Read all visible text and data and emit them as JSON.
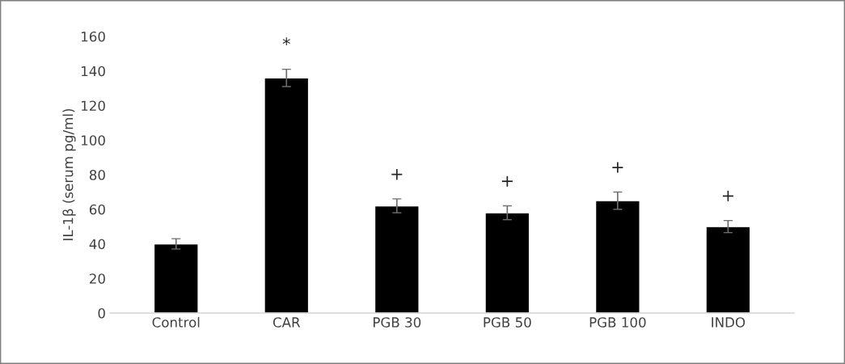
{
  "chart_data": {
    "type": "bar",
    "ylabel": "IL-1β (serum pg/ml)",
    "categories": [
      "Control",
      "CAR",
      "PGB 30",
      "PGB 50",
      "PGB 100",
      "INDO"
    ],
    "values": [
      40,
      136,
      62,
      58,
      65,
      50
    ],
    "errors": [
      3,
      5,
      4,
      4,
      5,
      3.5
    ],
    "color": "#000000",
    "ylim": [
      0,
      160
    ],
    "yticks": [
      0,
      20,
      40,
      60,
      80,
      100,
      120,
      140,
      160
    ],
    "grid": false,
    "value_labels": [
      null,
      "*",
      "+",
      "+",
      "+",
      "+"
    ]
  }
}
